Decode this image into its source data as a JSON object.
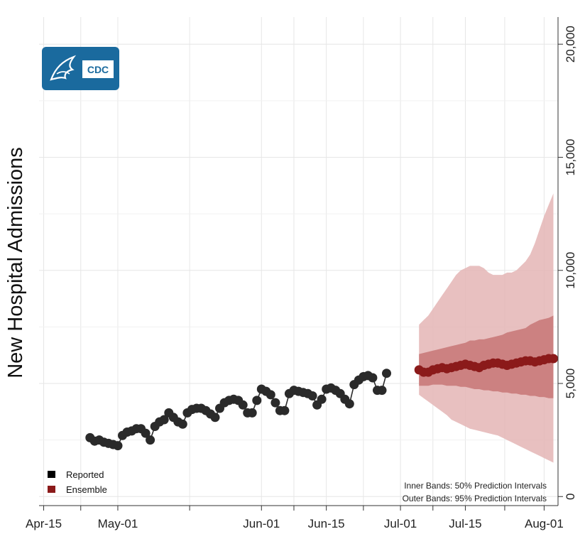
{
  "chart_data": {
    "type": "line",
    "title": "",
    "xlabel": "",
    "ylabel": "New Hospital Admissions",
    "x_ticks": [
      "Apr-15",
      "May-01",
      "Jun-01",
      "Jun-15",
      "Jul-01",
      "Jul-15",
      "Aug-01"
    ],
    "x_tick_dates": [
      "2021-04-15",
      "2021-05-01",
      "2021-06-01",
      "2021-06-15",
      "2021-07-01",
      "2021-07-15",
      "2021-08-01"
    ],
    "xlim": [
      "2021-04-14",
      "2021-08-04"
    ],
    "y_ticks": [
      0,
      5000,
      10000,
      15000,
      20000
    ],
    "y_tick_labels": [
      "0",
      "5,000",
      "10,000",
      "15,000",
      "20,000"
    ],
    "ylim": [
      -400,
      21200
    ],
    "y_axis_position": "right",
    "grid": true,
    "legend": {
      "position": "bottom-left",
      "entries": [
        {
          "label": "Reported",
          "color": "#000000"
        },
        {
          "label": "Ensemble",
          "color": "#8b1a1a"
        }
      ]
    },
    "annotations": [
      "Inner Bands: 50% Prediction Intervals",
      "Outer Bands: 95% Prediction Intervals"
    ],
    "logo_text": "CDC",
    "series": [
      {
        "name": "Reported",
        "color": "#2a2a2a",
        "start_date": "2021-04-25",
        "values": [
          2600,
          2450,
          2500,
          2400,
          2350,
          2300,
          2250,
          2700,
          2850,
          2900,
          3000,
          3000,
          2800,
          2500,
          3100,
          3300,
          3400,
          3700,
          3500,
          3300,
          3200,
          3700,
          3850,
          3900,
          3900,
          3800,
          3650,
          3500,
          3900,
          4150,
          4250,
          4300,
          4250,
          4050,
          3700,
          3700,
          4250,
          4750,
          4650,
          4500,
          4150,
          3800,
          3800,
          4550,
          4700,
          4650,
          4600,
          4550,
          4450,
          4050,
          4300,
          4750,
          4800,
          4700,
          4550,
          4300,
          4100,
          4950,
          5150,
          5300,
          5350,
          5250,
          4700,
          4700,
          5450
        ]
      },
      {
        "name": "Ensemble",
        "color": "#8b1a1a",
        "start_date": "2021-07-05",
        "values": [
          5600,
          5500,
          5500,
          5600,
          5650,
          5700,
          5650,
          5700,
          5750,
          5800,
          5850,
          5800,
          5750,
          5700,
          5800,
          5850,
          5900,
          5900,
          5850,
          5800,
          5850,
          5900,
          5950,
          6000,
          6000,
          5950,
          6000,
          6050,
          6100,
          6100
        ],
        "inner_lower": [
          4900,
          4900,
          4900,
          4950,
          4950,
          4950,
          4900,
          4900,
          4900,
          4850,
          4850,
          4800,
          4750,
          4750,
          4700,
          4700,
          4650,
          4650,
          4600,
          4600,
          4550,
          4550,
          4500,
          4500,
          4450,
          4450,
          4400,
          4400,
          4350,
          4350
        ],
        "inner_upper": [
          6300,
          6350,
          6400,
          6450,
          6500,
          6550,
          6600,
          6650,
          6700,
          6750,
          6800,
          6900,
          6900,
          6950,
          6950,
          7000,
          7050,
          7100,
          7150,
          7250,
          7300,
          7350,
          7400,
          7450,
          7600,
          7700,
          7800,
          7850,
          7900,
          8000
        ],
        "outer_lower": [
          4500,
          4350,
          4200,
          4050,
          3900,
          3750,
          3600,
          3400,
          3300,
          3200,
          3100,
          3000,
          2950,
          2900,
          2850,
          2800,
          2750,
          2700,
          2600,
          2500,
          2400,
          2300,
          2200,
          2100,
          2000,
          1900,
          1800,
          1700,
          1600,
          1500
        ],
        "outer_upper": [
          7600,
          7800,
          8000,
          8300,
          8600,
          8900,
          9200,
          9500,
          9800,
          10000,
          10100,
          10200,
          10200,
          10200,
          10100,
          9900,
          9800,
          9800,
          9800,
          9900,
          9900,
          10000,
          10200,
          10400,
          10700,
          11200,
          11800,
          12400,
          12900,
          13400
        ]
      }
    ]
  }
}
